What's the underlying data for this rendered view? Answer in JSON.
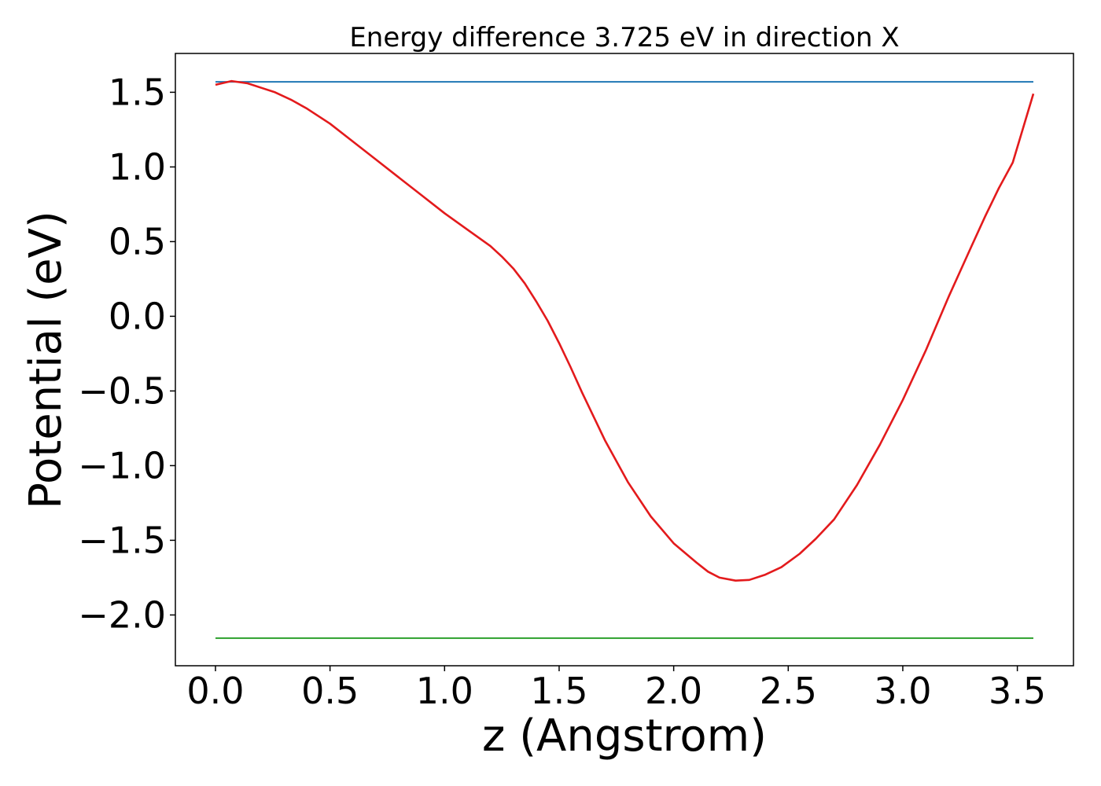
{
  "chart_data": {
    "type": "line",
    "title": "Energy difference 3.725 eV in direction X",
    "xlabel": "z (Angstrom)",
    "ylabel": "Potential (eV)",
    "xlim": [
      -0.175,
      3.745
    ],
    "ylim": [
      -2.34,
      1.76
    ],
    "xticks": [
      0.0,
      0.5,
      1.0,
      1.5,
      2.0,
      2.5,
      3.0,
      3.5
    ],
    "xtick_labels": [
      "0.0",
      "0.5",
      "1.0",
      "1.5",
      "2.0",
      "2.5",
      "3.0",
      "3.5"
    ],
    "yticks": [
      1.5,
      1.0,
      0.5,
      0.0,
      -0.5,
      -1.0,
      -1.5,
      -2.0
    ],
    "ytick_labels": [
      "1.5",
      "1.0",
      "0.5",
      "0.0",
      "−0.5",
      "−1.0",
      "−1.5",
      "−2.0"
    ],
    "grid": false,
    "series": [
      {
        "color": "#1f77b4",
        "x": [
          0.0,
          3.57
        ],
        "y": [
          1.57,
          1.57
        ]
      },
      {
        "color": "#2ca02c",
        "x": [
          0.0,
          3.57
        ],
        "y": [
          -2.155,
          -2.155
        ]
      },
      {
        "color": "#e31a1c",
        "x": [
          0.0,
          0.07,
          0.14,
          0.2,
          0.26,
          0.33,
          0.4,
          0.5,
          0.6,
          0.7,
          0.8,
          0.9,
          1.0,
          1.1,
          1.2,
          1.25,
          1.3,
          1.35,
          1.4,
          1.45,
          1.5,
          1.55,
          1.6,
          1.7,
          1.8,
          1.9,
          2.0,
          2.1,
          2.15,
          2.2,
          2.27,
          2.33,
          2.4,
          2.47,
          2.55,
          2.62,
          2.7,
          2.8,
          2.9,
          3.0,
          3.1,
          3.2,
          3.3,
          3.36,
          3.42,
          3.48,
          3.57
        ],
        "y": [
          1.55,
          1.575,
          1.56,
          1.53,
          1.5,
          1.45,
          1.39,
          1.29,
          1.17,
          1.05,
          0.93,
          0.81,
          0.69,
          0.58,
          0.47,
          0.4,
          0.32,
          0.22,
          0.1,
          -0.03,
          -0.18,
          -0.34,
          -0.51,
          -0.83,
          -1.11,
          -1.34,
          -1.52,
          -1.65,
          -1.71,
          -1.75,
          -1.77,
          -1.765,
          -1.73,
          -1.68,
          -1.59,
          -1.49,
          -1.36,
          -1.13,
          -0.86,
          -0.56,
          -0.23,
          0.13,
          0.47,
          0.67,
          0.86,
          1.03,
          1.49
        ]
      }
    ]
  }
}
